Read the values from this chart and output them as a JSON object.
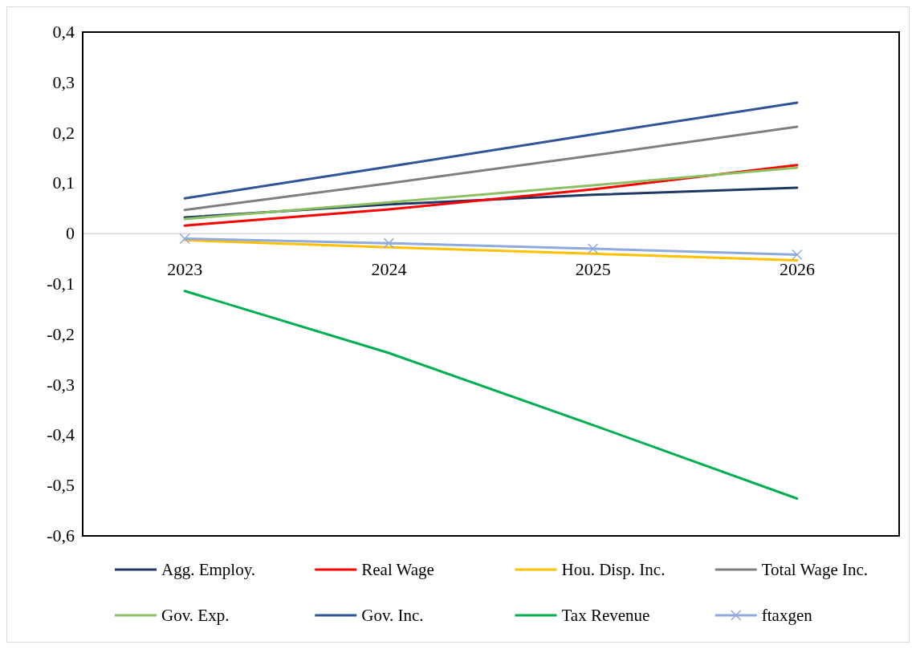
{
  "chart_data": {
    "type": "line",
    "categories": [
      "2023",
      "2024",
      "2025",
      "2026"
    ],
    "ylim": [
      -0.6,
      0.4
    ],
    "yticks": [
      {
        "value": -0.6,
        "label": "-0,6"
      },
      {
        "value": -0.5,
        "label": "-0,5"
      },
      {
        "value": -0.4,
        "label": "-0,4"
      },
      {
        "value": -0.3,
        "label": "-0,3"
      },
      {
        "value": -0.2,
        "label": "-0,2"
      },
      {
        "value": -0.1,
        "label": "-0,1"
      },
      {
        "value": 0,
        "label": "0"
      },
      {
        "value": 0.1,
        "label": "0,1"
      },
      {
        "value": 0.2,
        "label": "0,2"
      },
      {
        "value": 0.3,
        "label": "0,3"
      },
      {
        "value": 0.4,
        "label": "0,4"
      }
    ],
    "legend": "bottom",
    "grid": false,
    "series": [
      {
        "name": "Agg. Employ.",
        "color": "#203864",
        "values": [
          0.032,
          0.058,
          0.077,
          0.091
        ]
      },
      {
        "name": "Real Wage",
        "color": "#ff0000",
        "values": [
          0.016,
          0.048,
          0.088,
          0.136
        ]
      },
      {
        "name": "Hou. Disp. Inc.",
        "color": "#ffc000",
        "values": [
          -0.013,
          -0.027,
          -0.04,
          -0.053
        ]
      },
      {
        "name": "Total Wage Inc.",
        "color": "#7f7f7f",
        "values": [
          0.047,
          0.1,
          0.155,
          0.212
        ]
      },
      {
        "name": "Gov. Exp.",
        "color": "#8cc062",
        "values": [
          0.029,
          0.062,
          0.096,
          0.131
        ]
      },
      {
        "name": "Gov. Inc.",
        "color": "#2f5597",
        "values": [
          0.07,
          0.133,
          0.197,
          0.26
        ]
      },
      {
        "name": "Tax Revenue",
        "color": "#00b050",
        "values": [
          -0.114,
          -0.237,
          -0.38,
          -0.526
        ]
      },
      {
        "name": "ftaxgen",
        "color": "#8faadc",
        "marker": "cross",
        "values": [
          -0.01,
          -0.019,
          -0.03,
          -0.042
        ]
      }
    ]
  }
}
